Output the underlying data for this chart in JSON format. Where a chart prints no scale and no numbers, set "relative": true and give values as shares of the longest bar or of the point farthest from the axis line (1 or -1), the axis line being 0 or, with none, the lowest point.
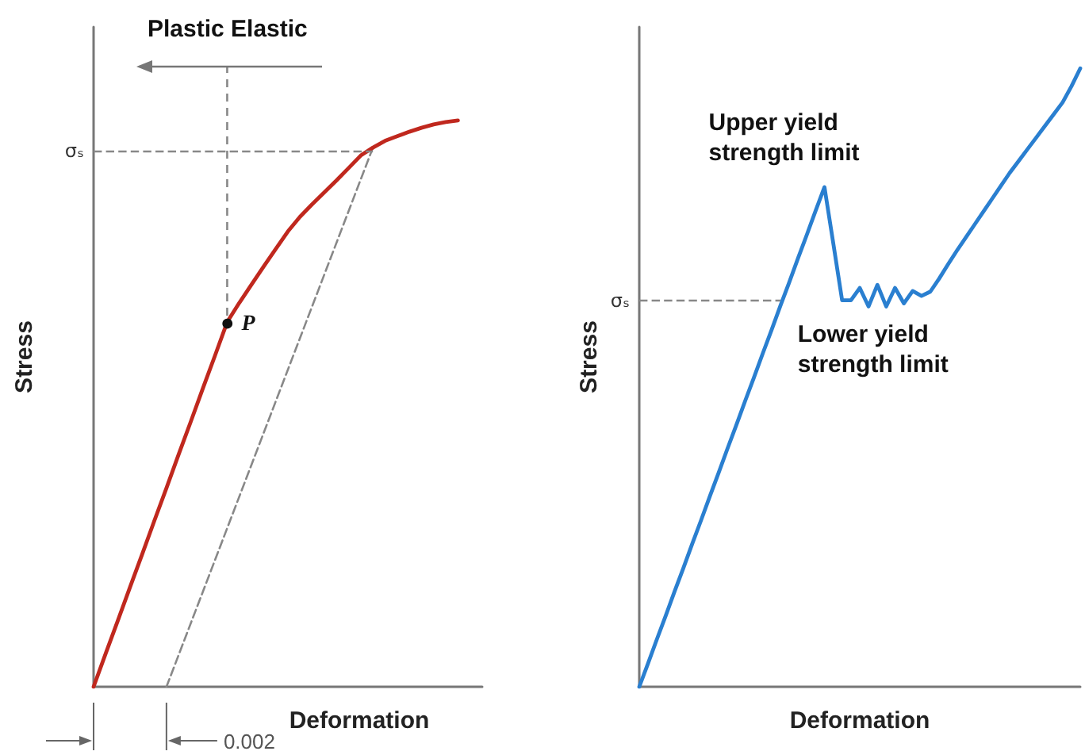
{
  "chart_data": [
    {
      "type": "line",
      "relative": true,
      "xlabel": "Deformation",
      "ylabel": "Stress",
      "grid": false,
      "marker": "none",
      "categories": [
        null,
        null,
        null,
        null,
        null,
        null,
        null,
        null,
        null,
        null,
        null,
        null,
        null,
        null,
        null,
        null,
        null,
        null,
        null,
        null,
        null,
        null,
        null,
        null,
        null,
        null,
        null,
        null,
        null,
        null,
        null,
        null,
        null
      ],
      "series": [
        {
          "color": "#c0281e",
          "values": [
            0,
            0.059,
            0.117,
            0.176,
            0.234,
            0.293,
            0.351,
            0.41,
            0.468,
            0.527,
            0.585,
            0.644,
            0.678,
            0.71,
            0.742,
            0.773,
            0.804,
            0.83,
            0.852,
            0.873,
            0.894,
            0.916,
            0.938,
            0.952,
            0.964,
            0.972,
            0.98,
            0.987,
            0.993,
            0.997,
            1,
            null,
            null
          ]
        },
        {
          "color": "#888888",
          "line_style": "dashed",
          "values": [
            null,
            null,
            null,
            null,
            null,
            null,
            0,
            null,
            null,
            null,
            null,
            null,
            null,
            null,
            null,
            null,
            null,
            null,
            null,
            null,
            null,
            null,
            null,
            0.952,
            null,
            null,
            null,
            null,
            null,
            null,
            null,
            null,
            null
          ]
        }
      ],
      "ref_lines": [
        {
          "axis": "y",
          "value": 0.947,
          "label": "σₛ",
          "color": "#888888",
          "line_style": "dashed"
        }
      ],
      "annotations": [
        "Plastic Elastic",
        "P",
        "0.002"
      ]
    },
    {
      "type": "line",
      "relative": true,
      "xlabel": "Deformation",
      "ylabel": "Stress",
      "grid": false,
      "marker": "none",
      "categories": [
        null,
        null,
        null,
        null,
        null,
        null,
        null,
        null,
        null,
        null,
        null,
        null,
        null,
        null,
        null,
        null,
        null,
        null,
        null,
        null,
        null,
        null,
        null,
        null,
        null,
        null,
        null,
        null,
        null,
        null,
        null,
        null,
        null,
        null,
        null,
        null,
        null,
        null,
        null,
        null,
        null,
        null,
        null,
        null,
        null,
        null,
        null,
        null,
        null,
        null,
        null
      ],
      "series": [
        {
          "color": "#2a7fd0",
          "values": [
            0,
            0.038,
            0.077,
            0.115,
            0.154,
            0.192,
            0.231,
            0.269,
            0.308,
            0.346,
            0.385,
            0.423,
            0.462,
            0.5,
            0.539,
            0.577,
            0.616,
            0.654,
            0.693,
            0.731,
            0.77,
            0.808,
            0.717,
            0.625,
            0.625,
            0.645,
            0.615,
            0.65,
            0.615,
            0.645,
            0.62,
            0.64,
            0.632,
            0.639,
            0.66,
            0.683,
            0.705,
            0.726,
            0.747,
            0.768,
            0.789,
            0.81,
            0.831,
            0.85,
            0.869,
            0.888,
            0.907,
            0.926,
            0.945,
            0.971,
            1
          ]
        }
      ],
      "ref_lines": [
        {
          "axis": "y",
          "value": 0.625,
          "label": "σₛ",
          "color": "#888888",
          "line_style": "dashed"
        }
      ],
      "annotations": [
        "Upper yield\nstrength limit",
        "Lower yield\nstrength limit"
      ]
    }
  ]
}
